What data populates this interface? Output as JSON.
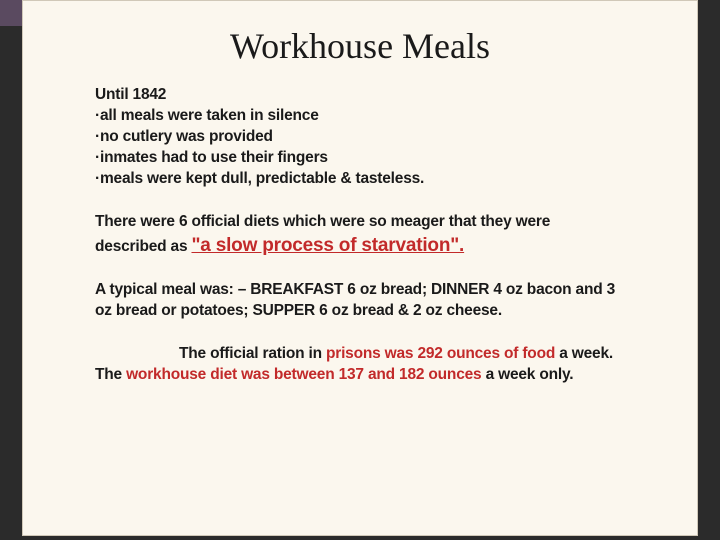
{
  "background_color": "#2b2b2b",
  "slide_background": "#fbf7ee",
  "corner_tab_color": "#5a4a60",
  "text_color": "#1a1a1a",
  "accent_color": "#c22a2a",
  "title": "Workhouse Meals",
  "section1": {
    "heading": "Until 1842",
    "bullets": [
      "·all meals were taken in silence",
      "·no cutlery was provided",
      "·inmates had to use their fingers",
      "·meals were kept dull, predictable & tasteless."
    ]
  },
  "section2": {
    "lead": "There were 6 official diets which were so meager that they were described as ",
    "quote": "\"a slow process of starvation\"."
  },
  "section3": {
    "text": "A typical meal was: – BREAKFAST 6 oz bread; DINNER 4 oz bacon and 3 oz bread or potatoes; SUPPER 6 oz bread & 2 oz cheese."
  },
  "section4": {
    "line1_pre": "The official ration in ",
    "line1_em": "prisons was 292 ounces of food",
    "line1_post": " a week.",
    "line2_pre": "The ",
    "line2_em": "workhouse diet was between 137 and 182 ounces",
    "line2_post": " a week only."
  }
}
